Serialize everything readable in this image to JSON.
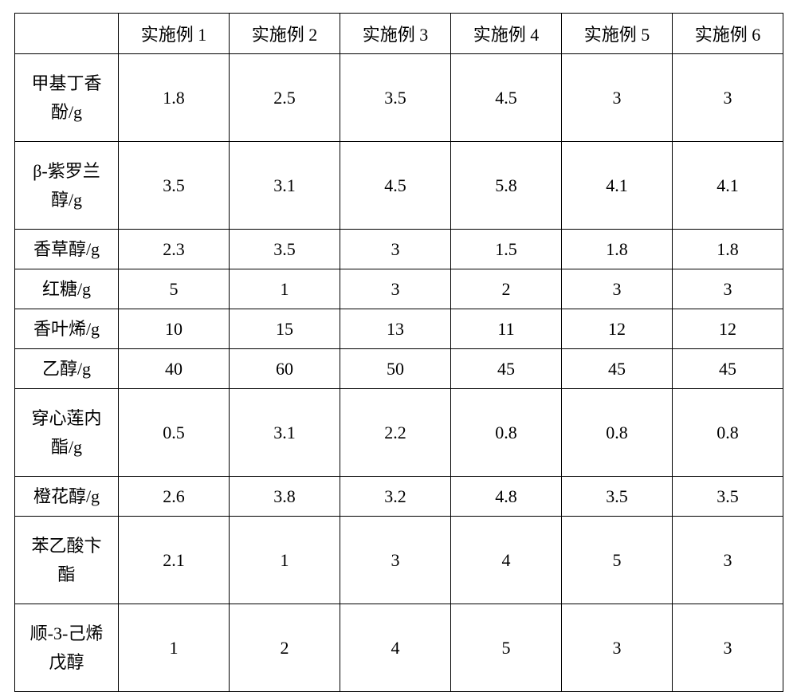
{
  "table": {
    "type": "table",
    "columns": [
      "",
      "实施例 1",
      "实施例 2",
      "实施例 3",
      "实施例 4",
      "实施例 5",
      "实施例 6"
    ],
    "row_headers": [
      "甲基丁香\n酚/g",
      "β-紫罗兰\n醇/g",
      "香草醇/g",
      "红糖/g",
      "香叶烯/g",
      "乙醇/g",
      "穿心莲内\n酯/g",
      "橙花醇/g",
      "苯乙酸卞\n酯",
      "顺-3-己烯\n戊醇"
    ],
    "rows": [
      [
        "1.8",
        "2.5",
        "3.5",
        "4.5",
        "3",
        "3"
      ],
      [
        "3.5",
        "3.1",
        "4.5",
        "5.8",
        "4.1",
        "4.1"
      ],
      [
        "2.3",
        "3.5",
        "3",
        "1.5",
        "1.8",
        "1.8"
      ],
      [
        "5",
        "1",
        "3",
        "2",
        "3",
        "3"
      ],
      [
        "10",
        "15",
        "13",
        "11",
        "12",
        "12"
      ],
      [
        "40",
        "60",
        "50",
        "45",
        "45",
        "45"
      ],
      [
        "0.5",
        "3.1",
        "2.2",
        "0.8",
        "0.8",
        "0.8"
      ],
      [
        "2.6",
        "3.8",
        "3.2",
        "4.8",
        "3.5",
        "3.5"
      ],
      [
        "2.1",
        "1",
        "3",
        "4",
        "5",
        "3"
      ],
      [
        "1",
        "2",
        "4",
        "5",
        "3",
        "3"
      ]
    ],
    "row_heights": [
      "tall",
      "tall",
      "short",
      "short",
      "short",
      "short",
      "tall",
      "short",
      "tall",
      "tall"
    ],
    "border_color": "#000000",
    "background_color": "#ffffff",
    "text_color": "#000000",
    "font_size_pt": 16,
    "font_family": "SimSun"
  }
}
